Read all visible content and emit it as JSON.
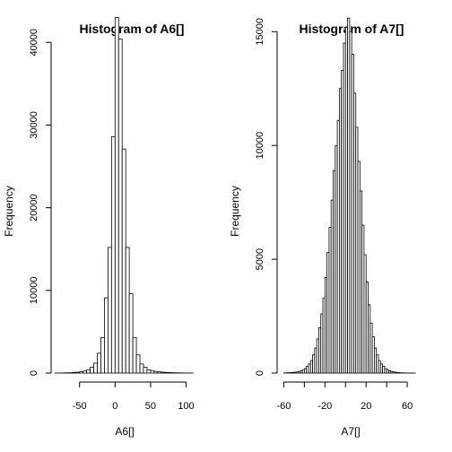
{
  "chart_data": [
    {
      "type": "bar",
      "title": "Histogram of A6[]",
      "xlabel": "A6[]",
      "ylabel": "Frequency",
      "xlim": [
        -85,
        112
      ],
      "ylim": [
        0,
        43500
      ],
      "x_ticks": [
        -50,
        0,
        50,
        100
      ],
      "y_ticks": [
        0,
        10000,
        20000,
        30000,
        40000
      ],
      "bin_width": 5,
      "bins": [
        [
          -85,
          5
        ],
        [
          -80,
          10
        ],
        [
          -75,
          20
        ],
        [
          -70,
          30
        ],
        [
          -65,
          40
        ],
        [
          -60,
          80
        ],
        [
          -55,
          100
        ],
        [
          -50,
          150
        ],
        [
          -45,
          250
        ],
        [
          -40,
          400
        ],
        [
          -35,
          700
        ],
        [
          -30,
          1200
        ],
        [
          -25,
          2400
        ],
        [
          -20,
          4300
        ],
        [
          -15,
          9100
        ],
        [
          -10,
          15200
        ],
        [
          -5,
          28600
        ],
        [
          0,
          43000
        ],
        [
          5,
          40400
        ],
        [
          10,
          27100
        ],
        [
          15,
          15200
        ],
        [
          20,
          9600
        ],
        [
          25,
          4300
        ],
        [
          30,
          2200
        ],
        [
          35,
          1100
        ],
        [
          40,
          700
        ],
        [
          45,
          400
        ],
        [
          50,
          300
        ],
        [
          55,
          200
        ],
        [
          60,
          150
        ],
        [
          65,
          100
        ],
        [
          70,
          80
        ],
        [
          75,
          60
        ],
        [
          80,
          40
        ],
        [
          85,
          30
        ],
        [
          90,
          20
        ],
        [
          95,
          15
        ],
        [
          100,
          10
        ],
        [
          105,
          5
        ]
      ]
    },
    {
      "type": "bar",
      "title": "Histogram of A7[]",
      "xlabel": "A7[]",
      "ylabel": "Frequency",
      "xlim": [
        -63,
        73
      ],
      "ylim": [
        0,
        15800
      ],
      "x_ticks": [
        -60,
        -40,
        -20,
        0,
        20,
        40,
        60
      ],
      "x_tick_labels": [
        "-60",
        "",
        "-20",
        "",
        "20",
        "",
        "60"
      ],
      "y_ticks": [
        0,
        5000,
        10000,
        15000
      ],
      "bin_width": 2,
      "bins": [
        [
          -60,
          5
        ],
        [
          -58,
          10
        ],
        [
          -56,
          15
        ],
        [
          -54,
          20
        ],
        [
          -52,
          30
        ],
        [
          -50,
          40
        ],
        [
          -48,
          50
        ],
        [
          -46,
          70
        ],
        [
          -44,
          100
        ],
        [
          -42,
          150
        ],
        [
          -40,
          200
        ],
        [
          -38,
          300
        ],
        [
          -36,
          400
        ],
        [
          -34,
          550
        ],
        [
          -32,
          800
        ],
        [
          -30,
          1100
        ],
        [
          -28,
          1500
        ],
        [
          -26,
          2000
        ],
        [
          -24,
          2600
        ],
        [
          -22,
          3300
        ],
        [
          -20,
          4200
        ],
        [
          -18,
          5300
        ],
        [
          -16,
          6400
        ],
        [
          -14,
          7600
        ],
        [
          -12,
          8900
        ],
        [
          -10,
          10000
        ],
        [
          -8,
          11100
        ],
        [
          -6,
          12500
        ],
        [
          -4,
          13300
        ],
        [
          -2,
          14500
        ],
        [
          0,
          15200
        ],
        [
          2,
          15600
        ],
        [
          4,
          15000
        ],
        [
          6,
          14000
        ],
        [
          8,
          12300
        ],
        [
          10,
          10800
        ],
        [
          12,
          9300
        ],
        [
          14,
          8000
        ],
        [
          16,
          6500
        ],
        [
          18,
          5200
        ],
        [
          20,
          4000
        ],
        [
          22,
          3000
        ],
        [
          24,
          2200
        ],
        [
          26,
          1600
        ],
        [
          28,
          1100
        ],
        [
          30,
          800
        ],
        [
          32,
          550
        ],
        [
          34,
          400
        ],
        [
          36,
          300
        ],
        [
          38,
          200
        ],
        [
          40,
          150
        ],
        [
          42,
          100
        ],
        [
          44,
          70
        ],
        [
          46,
          50
        ],
        [
          48,
          35
        ],
        [
          50,
          25
        ],
        [
          52,
          15
        ],
        [
          54,
          10
        ],
        [
          56,
          8
        ],
        [
          58,
          5
        ],
        [
          60,
          4
        ],
        [
          62,
          3
        ],
        [
          64,
          2
        ],
        [
          66,
          1
        ]
      ]
    }
  ]
}
